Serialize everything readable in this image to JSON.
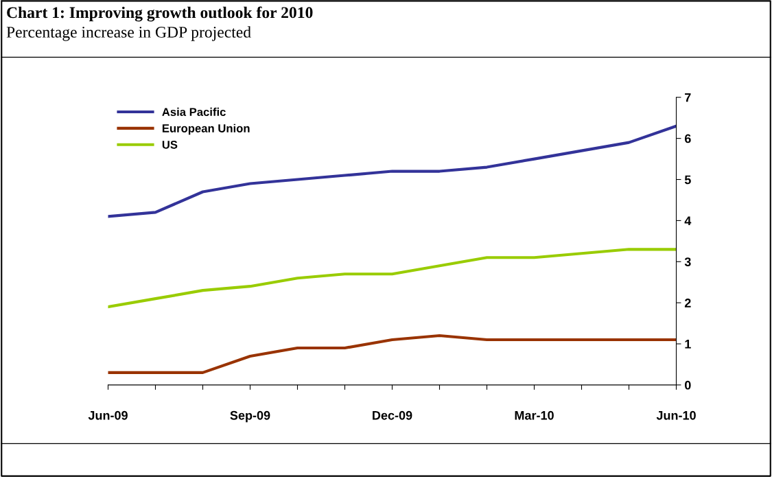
{
  "chart_data": {
    "type": "line",
    "title": "Chart 1: Improving growth outlook for 2010",
    "subtitle": "Percentage increase in GDP projected",
    "categories": [
      "Jun-09",
      null,
      null,
      "Sep-09",
      null,
      null,
      "Dec-09",
      null,
      null,
      "Mar-10",
      null,
      null,
      "Jun-10"
    ],
    "series": [
      {
        "name": "Asia Pacific",
        "color": "#333399",
        "values": [
          4.1,
          4.2,
          4.7,
          4.9,
          5.0,
          5.1,
          5.2,
          5.2,
          5.3,
          5.5,
          5.7,
          5.9,
          6.3
        ]
      },
      {
        "name": "European Union",
        "color": "#993300",
        "values": [
          0.3,
          0.3,
          0.3,
          0.7,
          0.9,
          0.9,
          1.1,
          1.2,
          1.1,
          1.1,
          1.1,
          1.1,
          1.1
        ]
      },
      {
        "name": "US",
        "color": "#99cc00",
        "values": [
          1.9,
          2.1,
          2.3,
          2.4,
          2.6,
          2.7,
          2.7,
          2.9,
          3.1,
          3.1,
          3.2,
          3.3,
          3.3
        ]
      }
    ],
    "ylim": [
      0,
      7
    ],
    "yticks": [
      0,
      1,
      2,
      3,
      4,
      5,
      6,
      7
    ],
    "grid": false,
    "legend": "top left",
    "marker": "none",
    "line_style": "solid"
  }
}
